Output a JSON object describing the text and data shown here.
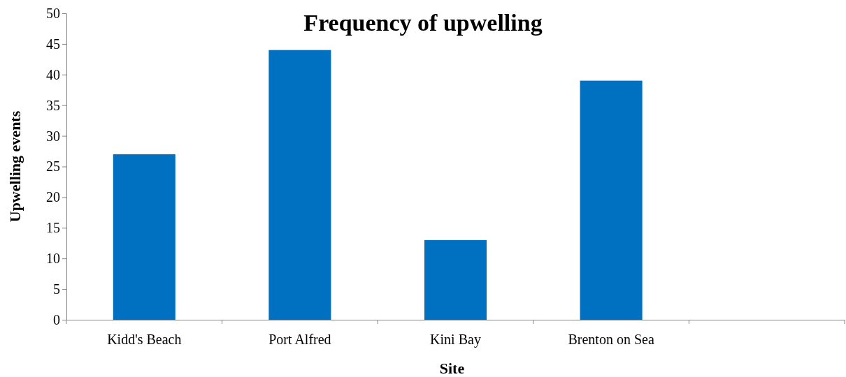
{
  "chart_data": {
    "type": "bar",
    "title": "Frequency of upwelling",
    "xlabel": "Site",
    "ylabel": "Upwelling events",
    "categories": [
      "Kidd's Beach",
      "Port Alfred",
      "Kini Bay",
      "Brenton on Sea",
      null
    ],
    "values": [
      27,
      44,
      13,
      39,
      null
    ],
    "color": "#0070c0",
    "ylim": [
      0,
      50
    ],
    "yticks": [
      0,
      5,
      10,
      15,
      20,
      25,
      30,
      35,
      40,
      45,
      50
    ],
    "grid": false
  }
}
